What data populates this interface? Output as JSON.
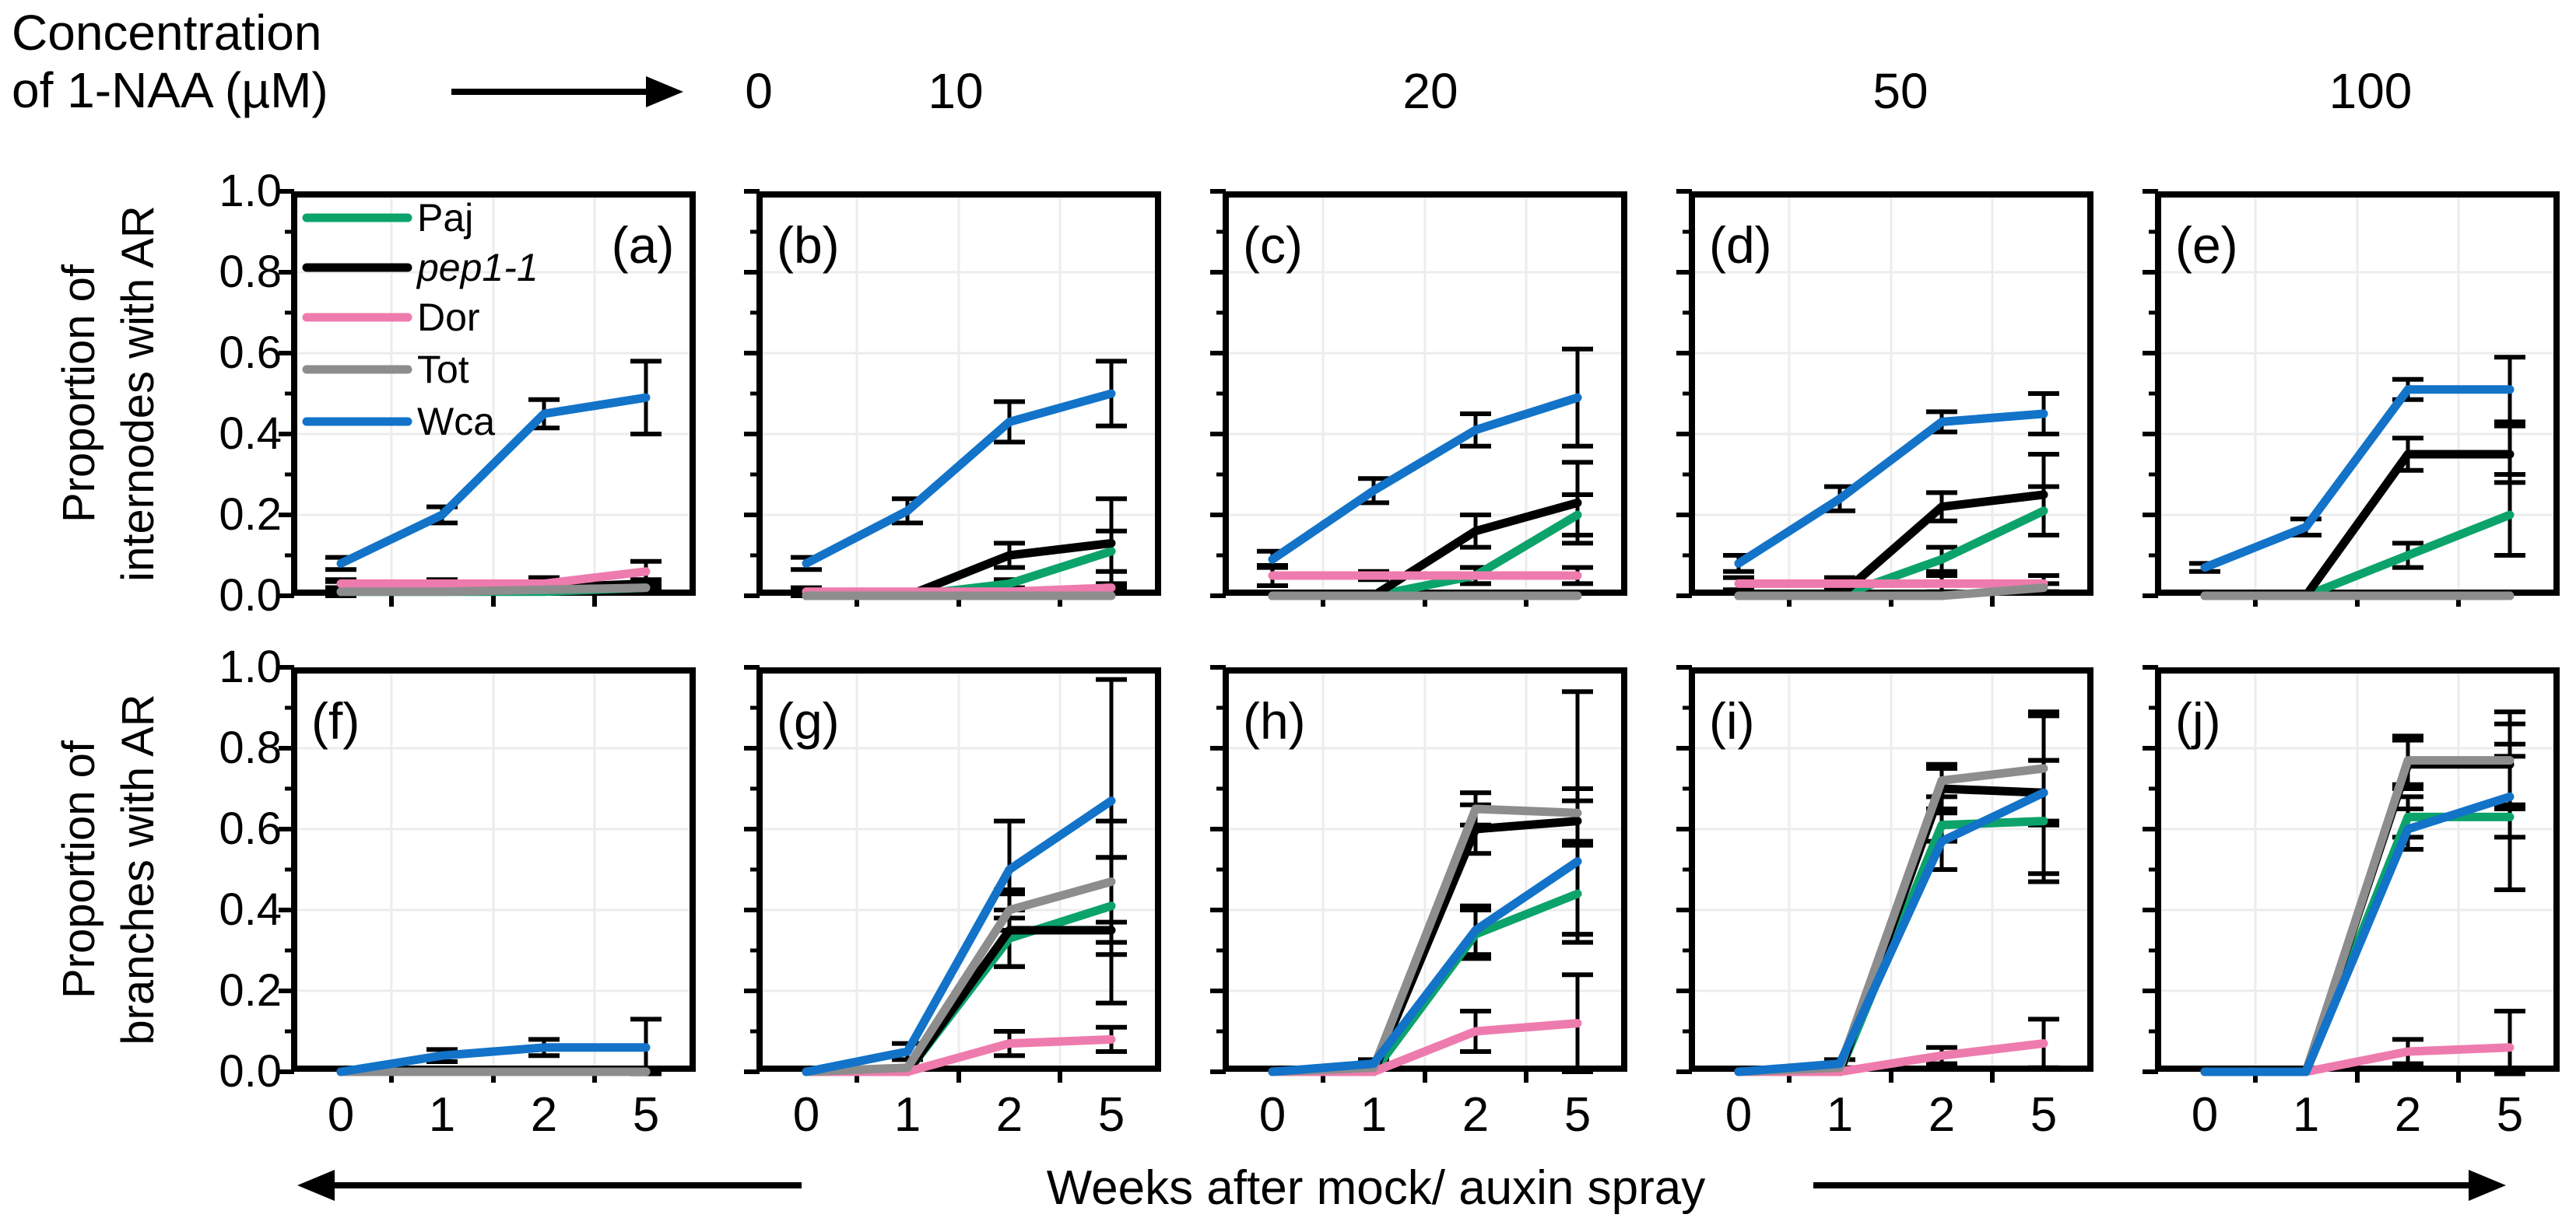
{
  "header": {
    "title_line1": "Concentration",
    "title_line2": "of 1-NAA (µM)",
    "arrow_icon": "right-arrow",
    "concentrations": [
      "0",
      "10",
      "20",
      "50",
      "100"
    ]
  },
  "axes": {
    "y_ticks": [
      "1.0",
      "0.8",
      "0.6",
      "0.4",
      "0.2",
      "0.0"
    ],
    "x_ticks": [
      "0",
      "1",
      "2",
      "5"
    ],
    "row1_ylabel_line1": "Proportion of",
    "row1_ylabel_line2": "internodes with AR",
    "row2_ylabel_line1": "Proportion of",
    "row2_ylabel_line2": "branches with AR",
    "x_axis_label": "Weeks after mock/ auxin spray"
  },
  "legend": {
    "entries": [
      {
        "label": "Paj",
        "series": "Paj",
        "italic": false
      },
      {
        "label": "pep1-1",
        "series": "pep1-1",
        "italic": true
      },
      {
        "label": "Dor",
        "series": "Dor",
        "italic": false
      },
      {
        "label": "Tot",
        "series": "Tot",
        "italic": false
      },
      {
        "label": "Wca",
        "series": "Wca",
        "italic": false
      }
    ]
  },
  "colors": {
    "series": {
      "Paj": "#0ca36b",
      "pep1-1": "#000000",
      "Dor": "#ee7bad",
      "Tot": "#8d8d8d",
      "Wca": "#1273c8"
    },
    "grid": "#ececec",
    "axis": "#000000"
  },
  "chart_data": [
    {
      "type": "line",
      "panel": "a",
      "letter": "(a)",
      "letter_pos": "tr",
      "row": 0,
      "col": 0,
      "concentration": "0",
      "measure": "Proportion of internodes with AR",
      "x": [
        0,
        1,
        2,
        5
      ],
      "ylim": [
        0,
        1
      ],
      "legend_inside": true,
      "series": [
        {
          "name": "Paj",
          "values": [
            0.01,
            0.01,
            0.01,
            0.02
          ],
          "err": [
            0.01,
            0,
            0,
            0.01
          ]
        },
        {
          "name": "pep1-1",
          "values": [
            0.02,
            0.02,
            0.02,
            0.03
          ],
          "err": [
            0.015,
            0.01,
            0.01,
            0.01
          ]
        },
        {
          "name": "Dor",
          "values": [
            0.03,
            0.03,
            0.03,
            0.06
          ],
          "err": [
            0.01,
            0.01,
            0.015,
            0.025
          ]
        },
        {
          "name": "Tot",
          "values": [
            0.01,
            0.01,
            0.015,
            0.02
          ],
          "err": [
            0.01,
            0,
            0,
            0.01
          ]
        },
        {
          "name": "Wca",
          "values": [
            0.08,
            0.2,
            0.45,
            0.49
          ],
          "err": [
            0.015,
            0.02,
            0.035,
            0.09
          ]
        }
      ]
    },
    {
      "type": "line",
      "panel": "b",
      "letter": "(b)",
      "letter_pos": "tl",
      "row": 0,
      "col": 1,
      "concentration": "10",
      "measure": "Proportion of internodes with AR",
      "x": [
        0,
        1,
        2,
        5
      ],
      "ylim": [
        0,
        1
      ],
      "legend_inside": false,
      "series": [
        {
          "name": "Paj",
          "values": [
            0,
            0,
            0.03,
            0.11
          ],
          "err": [
            0,
            0,
            0.01,
            0.05
          ]
        },
        {
          "name": "pep1-1",
          "values": [
            0,
            0,
            0.1,
            0.13
          ],
          "err": [
            0,
            0,
            0.03,
            0.11
          ]
        },
        {
          "name": "Dor",
          "values": [
            0.01,
            0.01,
            0.01,
            0.02
          ],
          "err": [
            0.01,
            0,
            0,
            0.01
          ]
        },
        {
          "name": "Tot",
          "values": [
            0,
            0,
            0,
            0
          ],
          "err": [
            0,
            0,
            0,
            0
          ]
        },
        {
          "name": "Wca",
          "values": [
            0.08,
            0.21,
            0.43,
            0.5
          ],
          "err": [
            0.015,
            0.03,
            0.05,
            0.08
          ]
        }
      ]
    },
    {
      "type": "line",
      "panel": "c",
      "letter": "(c)",
      "letter_pos": "tl",
      "row": 0,
      "col": 2,
      "concentration": "20",
      "measure": "Proportion of internodes with AR",
      "x": [
        0,
        1,
        2,
        5
      ],
      "ylim": [
        0,
        1
      ],
      "legend_inside": false,
      "series": [
        {
          "name": "Paj",
          "values": [
            0,
            0,
            0.05,
            0.2
          ],
          "err": [
            0,
            0,
            0.02,
            0.05
          ]
        },
        {
          "name": "pep1-1",
          "values": [
            0,
            0,
            0.16,
            0.23
          ],
          "err": [
            0,
            0,
            0.04,
            0.1
          ]
        },
        {
          "name": "Dor",
          "values": [
            0.05,
            0.05,
            0.05,
            0.05
          ],
          "err": [
            0.025,
            0.01,
            0.02,
            0.02
          ]
        },
        {
          "name": "Tot",
          "values": [
            0,
            0,
            0,
            0
          ],
          "err": [
            0,
            0,
            0,
            0
          ]
        },
        {
          "name": "Wca",
          "values": [
            0.09,
            0.26,
            0.41,
            0.49
          ],
          "err": [
            0.02,
            0.03,
            0.04,
            0.12
          ]
        }
      ]
    },
    {
      "type": "line",
      "panel": "d",
      "letter": "(d)",
      "letter_pos": "tl",
      "row": 0,
      "col": 3,
      "concentration": "50",
      "measure": "Proportion of internodes with AR",
      "x": [
        0,
        1,
        2,
        5
      ],
      "ylim": [
        0,
        1
      ],
      "legend_inside": false,
      "series": [
        {
          "name": "Paj",
          "values": [
            0,
            0,
            0.09,
            0.21
          ],
          "err": [
            0,
            0,
            0.03,
            0.06
          ]
        },
        {
          "name": "pep1-1",
          "values": [
            0,
            0,
            0.22,
            0.25
          ],
          "err": [
            0,
            0,
            0.035,
            0.1
          ]
        },
        {
          "name": "Dor",
          "values": [
            0.03,
            0.03,
            0.03,
            0.03
          ],
          "err": [
            0.015,
            0.015,
            0.02,
            0.02
          ]
        },
        {
          "name": "Tot",
          "values": [
            0,
            0,
            0,
            0.02
          ],
          "err": [
            0,
            0,
            0,
            0.01
          ]
        },
        {
          "name": "Wca",
          "values": [
            0.08,
            0.24,
            0.43,
            0.45
          ],
          "err": [
            0.02,
            0.03,
            0.025,
            0.05
          ]
        }
      ]
    },
    {
      "type": "line",
      "panel": "e",
      "letter": "(e)",
      "letter_pos": "tl",
      "row": 0,
      "col": 4,
      "concentration": "100",
      "measure": "Proportion of internodes with AR",
      "x": [
        0,
        1,
        2,
        5
      ],
      "ylim": [
        0,
        1
      ],
      "legend_inside": false,
      "series": [
        {
          "name": "Paj",
          "values": [
            0,
            0,
            0.1,
            0.2
          ],
          "err": [
            0,
            0,
            0.03,
            0.1
          ]
        },
        {
          "name": "pep1-1",
          "values": [
            0,
            0,
            0.35,
            0.35
          ],
          "err": [
            0,
            0,
            0.04,
            0.07
          ]
        },
        {
          "name": "Dor",
          "values": [
            0,
            0,
            0,
            0
          ],
          "err": [
            0,
            0,
            0,
            0
          ]
        },
        {
          "name": "Tot",
          "values": [
            0,
            0,
            0,
            0
          ],
          "err": [
            0,
            0,
            0,
            0
          ]
        },
        {
          "name": "Wca",
          "values": [
            0.07,
            0.17,
            0.51,
            0.51
          ],
          "err": [
            0.01,
            0.02,
            0.025,
            0.08
          ]
        }
      ]
    },
    {
      "type": "line",
      "panel": "f",
      "letter": "(f)",
      "letter_pos": "tl",
      "row": 1,
      "col": 0,
      "concentration": "0",
      "measure": "Proportion of branches with AR",
      "x": [
        0,
        1,
        2,
        5
      ],
      "ylim": [
        0,
        1
      ],
      "legend_inside": false,
      "series": [
        {
          "name": "Paj",
          "values": [
            0,
            0,
            0,
            0
          ],
          "err": [
            0,
            0,
            0,
            0
          ]
        },
        {
          "name": "pep1-1",
          "values": [
            0,
            0,
            0,
            0
          ],
          "err": [
            0,
            0,
            0,
            0
          ]
        },
        {
          "name": "Dor",
          "values": [
            0,
            0,
            0,
            0
          ],
          "err": [
            0,
            0,
            0,
            0
          ]
        },
        {
          "name": "Tot",
          "values": [
            0,
            0,
            0,
            0
          ],
          "err": [
            0,
            0,
            0,
            0
          ]
        },
        {
          "name": "Wca",
          "values": [
            0,
            0.04,
            0.06,
            0.06
          ],
          "err": [
            0,
            0.015,
            0.02,
            0.07
          ]
        }
      ]
    },
    {
      "type": "line",
      "panel": "g",
      "letter": "(g)",
      "letter_pos": "tl",
      "row": 1,
      "col": 1,
      "concentration": "10",
      "measure": "Proportion of branches with AR",
      "x": [
        0,
        1,
        2,
        5
      ],
      "ylim": [
        0,
        1
      ],
      "legend_inside": false,
      "series": [
        {
          "name": "Paj",
          "values": [
            0,
            0,
            0.33,
            0.41
          ],
          "err": [
            0,
            0,
            0.07,
            0.12
          ]
        },
        {
          "name": "pep1-1",
          "values": [
            0,
            0,
            0.35,
            0.35
          ],
          "err": [
            0,
            0,
            0.09,
            0.18
          ]
        },
        {
          "name": "Dor",
          "values": [
            0,
            0,
            0.07,
            0.08
          ],
          "err": [
            0,
            0,
            0.03,
            0.03
          ]
        },
        {
          "name": "Tot",
          "values": [
            0,
            0.01,
            0.4,
            0.47
          ],
          "err": [
            0,
            0,
            0.05,
            0.15
          ]
        },
        {
          "name": "Wca",
          "values": [
            0,
            0.05,
            0.5,
            0.67
          ],
          "err": [
            0,
            0.02,
            0.12,
            0.3
          ]
        }
      ]
    },
    {
      "type": "line",
      "panel": "h",
      "letter": "(h)",
      "letter_pos": "tl",
      "row": 1,
      "col": 2,
      "concentration": "20",
      "measure": "Proportion of branches with AR",
      "x": [
        0,
        1,
        2,
        5
      ],
      "ylim": [
        0,
        1
      ],
      "legend_inside": false,
      "series": [
        {
          "name": "Paj",
          "values": [
            0,
            0,
            0.34,
            0.44
          ],
          "err": [
            0,
            0,
            0.06,
            0.12
          ]
        },
        {
          "name": "pep1-1",
          "values": [
            0,
            0,
            0.6,
            0.62
          ],
          "err": [
            0,
            0,
            0.06,
            0.05
          ]
        },
        {
          "name": "Dor",
          "values": [
            0,
            0,
            0.1,
            0.12
          ],
          "err": [
            0,
            0,
            0.05,
            0.12
          ]
        },
        {
          "name": "Tot",
          "values": [
            0,
            0.01,
            0.65,
            0.64
          ],
          "err": [
            0,
            0,
            0.04,
            0.3
          ]
        },
        {
          "name": "Wca",
          "values": [
            0,
            0.02,
            0.35,
            0.52
          ],
          "err": [
            0,
            0.01,
            0.06,
            0.18
          ]
        }
      ]
    },
    {
      "type": "line",
      "panel": "i",
      "letter": "(i)",
      "letter_pos": "tl",
      "row": 1,
      "col": 3,
      "concentration": "50",
      "measure": "Proportion of branches with AR",
      "x": [
        0,
        1,
        2,
        5
      ],
      "ylim": [
        0,
        1
      ],
      "legend_inside": false,
      "series": [
        {
          "name": "Paj",
          "values": [
            0,
            0,
            0.61,
            0.62
          ],
          "err": [
            0,
            0,
            0.04,
            0.15
          ]
        },
        {
          "name": "pep1-1",
          "values": [
            0,
            0,
            0.7,
            0.69
          ],
          "err": [
            0,
            0,
            0.05,
            0.08
          ]
        },
        {
          "name": "Dor",
          "values": [
            0,
            0,
            0.04,
            0.07
          ],
          "err": [
            0,
            0,
            0.02,
            0.06
          ]
        },
        {
          "name": "Tot",
          "values": [
            0,
            0.01,
            0.72,
            0.75
          ],
          "err": [
            0,
            0,
            0.04,
            0.13
          ]
        },
        {
          "name": "Wca",
          "values": [
            0,
            0.02,
            0.57,
            0.69
          ],
          "err": [
            0,
            0.01,
            0.07,
            0.2
          ]
        }
      ]
    },
    {
      "type": "line",
      "panel": "j",
      "letter": "(j)",
      "letter_pos": "tl",
      "row": 1,
      "col": 4,
      "concentration": "100",
      "measure": "Proportion of branches with AR",
      "x": [
        0,
        1,
        2,
        5
      ],
      "ylim": [
        0,
        1
      ],
      "legend_inside": false,
      "series": [
        {
          "name": "Paj",
          "values": [
            0,
            0,
            0.63,
            0.63
          ],
          "err": [
            0,
            0,
            0.05,
            0.18
          ]
        },
        {
          "name": "pep1-1",
          "values": [
            0,
            0,
            0.76,
            0.76
          ],
          "err": [
            0,
            0,
            0.06,
            0.1
          ]
        },
        {
          "name": "Dor",
          "values": [
            0,
            0,
            0.05,
            0.06
          ],
          "err": [
            0,
            0,
            0.03,
            0.09
          ]
        },
        {
          "name": "Tot",
          "values": [
            0,
            0,
            0.77,
            0.77
          ],
          "err": [
            0,
            0,
            0.06,
            0.12
          ]
        },
        {
          "name": "Wca",
          "values": [
            0,
            0,
            0.6,
            0.68
          ],
          "err": [
            0,
            0,
            0.05,
            0.1
          ]
        }
      ]
    }
  ]
}
